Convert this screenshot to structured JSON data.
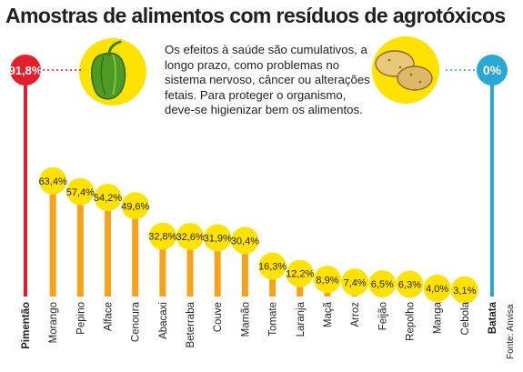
{
  "title": "Amostras de alimentos com resíduos de agrotóxicos",
  "note": "Os efeitos à saúde são cumulativos, a longo prazo, como problemas no sistema nervoso, câncer ou alterações fetais. Para proteger o organismo, deve-se higienizar bem os alimentos.",
  "source": "Fonte: Anvisa",
  "colors": {
    "max_marker": "#e2202c",
    "min_marker": "#2aa8d4",
    "arrow": "#f7a21b",
    "value_disc": "#ffe200",
    "icon_circle": "#ffe200"
  },
  "icons": {
    "max": "green-pepper-icon",
    "min": "potatoes-icon"
  },
  "chart_data": {
    "type": "bar",
    "title": "Amostras de alimentos com resíduos de agrotóxicos",
    "categories": [
      "Pimentão",
      "Morango",
      "Pepino",
      "Alface",
      "Cenoura",
      "Abacaxi",
      "Beterraba",
      "Couve",
      "Mamão",
      "Tomate",
      "Laranja",
      "Maçã",
      "Arroz",
      "Feijão",
      "Repolho",
      "Manga",
      "Cebola",
      "Batata"
    ],
    "values": [
      91.8,
      63.4,
      57.4,
      54.2,
      49.6,
      32.8,
      32.6,
      31.9,
      30.4,
      16.3,
      12.2,
      8.9,
      7.4,
      6.5,
      6.3,
      4.0,
      3.1,
      0
    ],
    "value_labels": [
      "91,8%",
      "63,4%",
      "57,4%",
      "54,2%",
      "49,6%",
      "32,8%",
      "32,6%",
      "31,9%",
      "30,4%",
      "16,3%",
      "12,2%",
      "8,9%",
      "7,4%",
      "6,5%",
      "6,3%",
      "4,0%",
      "3,1%",
      "0%"
    ],
    "unit": "%",
    "xlabel": "",
    "ylabel": "",
    "ylim": [
      0,
      100
    ],
    "grid": false,
    "legend": "none"
  }
}
